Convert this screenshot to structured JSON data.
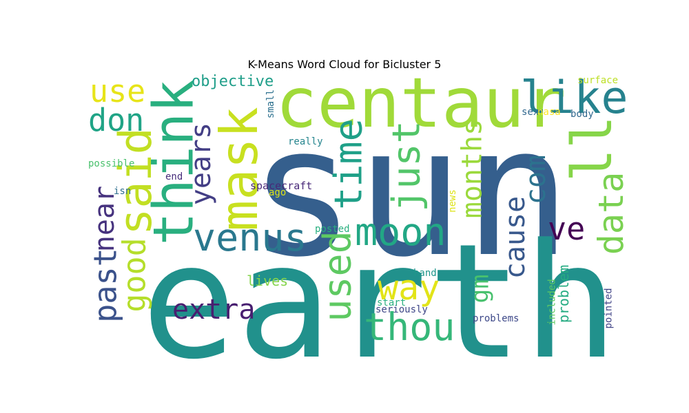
{
  "chart_data": {
    "type": "word_cloud",
    "title": "K-Means Word Cloud for Bicluster 5",
    "words": [
      {
        "text": "sun",
        "color": "#355f8d"
      },
      {
        "text": "earth",
        "color": "#21918c"
      },
      {
        "text": "centaur",
        "color": "#a0da39"
      },
      {
        "text": "think",
        "color": "#29af7f"
      },
      {
        "text": "mask",
        "color": "#c8e020"
      },
      {
        "text": "said",
        "color": "#c2df23"
      },
      {
        "text": "ll",
        "color": "#86d549"
      },
      {
        "text": "like",
        "color": "#26828e"
      },
      {
        "text": "use",
        "color": "#e7e419"
      },
      {
        "text": "don",
        "color": "#20a486"
      },
      {
        "text": "venus",
        "color": "#2a788e"
      },
      {
        "text": "moon",
        "color": "#22a785"
      },
      {
        "text": "time",
        "color": "#1fa088"
      },
      {
        "text": "just",
        "color": "#52c569"
      },
      {
        "text": "years",
        "color": "#433e85"
      },
      {
        "text": "data",
        "color": "#7ad151"
      },
      {
        "text": "months",
        "color": "#9bd93c"
      },
      {
        "text": "com",
        "color": "#2c728e"
      },
      {
        "text": "cause",
        "color": "#38588c"
      },
      {
        "text": "used",
        "color": "#5ec962"
      },
      {
        "text": "thou",
        "color": "#35b779"
      },
      {
        "text": "way",
        "color": "#e2e418"
      },
      {
        "text": "ve",
        "color": "#440154"
      },
      {
        "text": "past",
        "color": "#3b528b"
      },
      {
        "text": "near",
        "color": "#46327e"
      },
      {
        "text": "good",
        "color": "#b5de2b"
      },
      {
        "text": "extra",
        "color": "#481f70"
      },
      {
        "text": "gm",
        "color": "#48c16e"
      },
      {
        "text": "objective",
        "color": "#1f9e89"
      },
      {
        "text": "problem",
        "color": "#25ab82"
      },
      {
        "text": "lives",
        "color": "#84d44b"
      },
      {
        "text": "spacecraft",
        "color": "#482878"
      },
      {
        "text": "problems",
        "color": "#3e4989"
      },
      {
        "text": "seriously",
        "color": "#3f4788"
      },
      {
        "text": "surface",
        "color": "#bddf26"
      },
      {
        "text": "body",
        "color": "#31688e"
      },
      {
        "text": "sex",
        "color": "#31688e"
      },
      {
        "text": "nasa",
        "color": "#fde725"
      },
      {
        "text": "small",
        "color": "#2d708e"
      },
      {
        "text": "really",
        "color": "#25858e"
      },
      {
        "text": "possible",
        "color": "#4ac16d"
      },
      {
        "text": "end",
        "color": "#472d7b"
      },
      {
        "text": "isn",
        "color": "#2e6f8e"
      },
      {
        "text": "ago",
        "color": "#dde318"
      },
      {
        "text": "news",
        "color": "#dde318"
      },
      {
        "text": "posted",
        "color": "#29af7f"
      },
      {
        "text": "hand",
        "color": "#1f968b"
      },
      {
        "text": "start",
        "color": "#2ab07f"
      },
      {
        "text": "included",
        "color": "#5ec962"
      },
      {
        "text": "pointed",
        "color": "#414487"
      }
    ]
  }
}
